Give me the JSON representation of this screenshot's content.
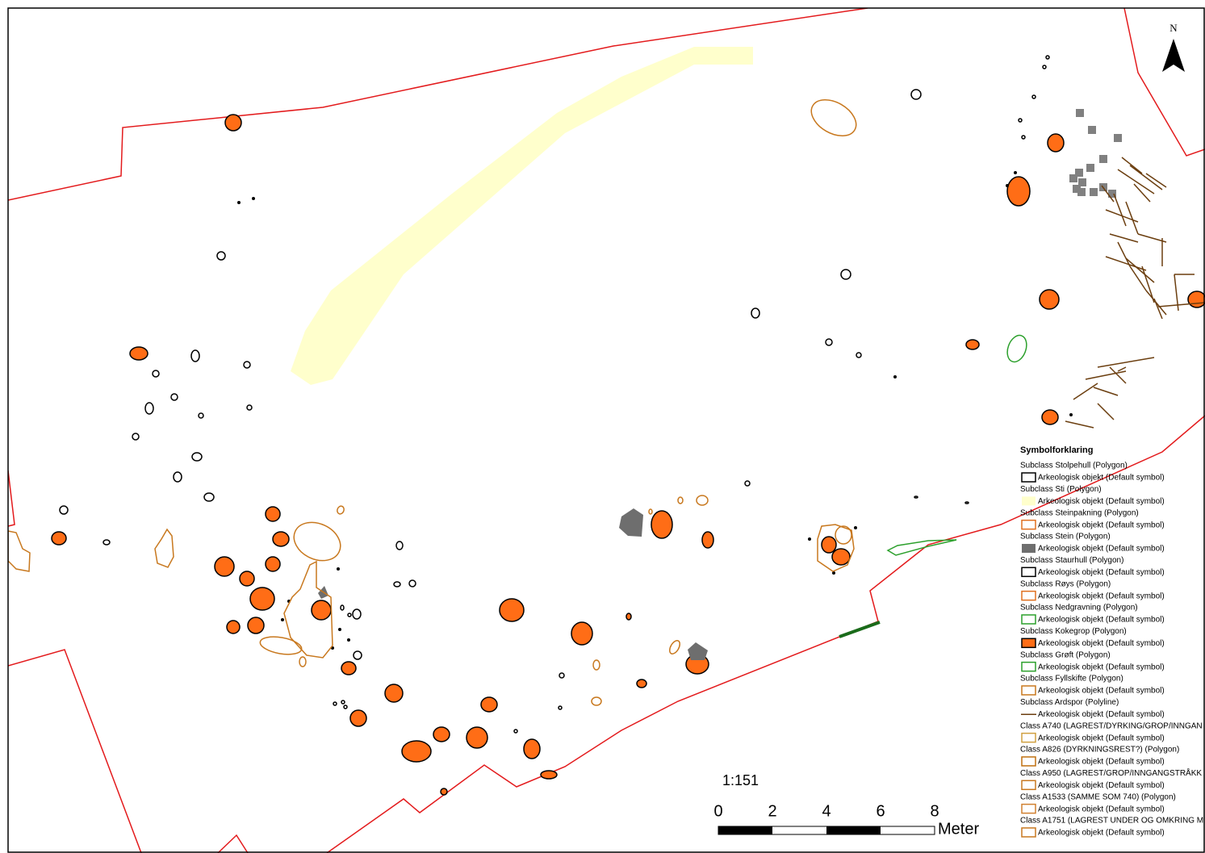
{
  "north_arrow": {
    "label": "N"
  },
  "scale": {
    "ratio": "1:151",
    "labels": [
      "0",
      "2",
      "4",
      "6",
      "8"
    ],
    "unit": "Meter"
  },
  "legend": {
    "title": "Symbolforklaring",
    "entries": [
      {
        "class": "Subclass Stolpehull (Polygon)",
        "label": "Arkeologisk objekt (Default symbol)"
      },
      {
        "class": "Subclass Sti (Polygon)",
        "label": "Arkeologisk objekt (Default symbol)"
      },
      {
        "class": "Subclass Steinpakning (Polygon)",
        "label": "Arkeologisk objekt (Default symbol)"
      },
      {
        "class": "Subclass Stein (Polygon)",
        "label": "Arkeologisk objekt (Default symbol)"
      },
      {
        "class": "Subclass Staurhull (Polygon)",
        "label": "Arkeologisk objekt (Default symbol)"
      },
      {
        "class": "Subclass Røys (Polygon)",
        "label": "Arkeologisk objekt (Default symbol)"
      },
      {
        "class": "Subclass Nedgravning (Polygon)",
        "label": "Arkeologisk objekt (Default symbol)"
      },
      {
        "class": "Subclass Kokegrop (Polygon)",
        "label": "Arkeologisk objekt (Default symbol)"
      },
      {
        "class": "Subclass Grøft (Polygon)",
        "label": "Arkeologisk objekt (Default symbol)"
      },
      {
        "class": "Subclass Fyllskifte (Polygon)",
        "label": "Arkeologisk objekt (Default symbol)"
      },
      {
        "class": "Subclass Ardspor (Polyline)",
        "label": "Arkeologisk objekt (Default symbol)"
      },
      {
        "class": "Class A740 (LAGREST/DYRKING/GROP/INNGAN",
        "label": "Arkeologisk objekt (Default symbol)"
      },
      {
        "class": "Class A826 (DYRKNINGSREST?) (Polygon)",
        "label": "Arkeologisk objekt (Default symbol)"
      },
      {
        "class": "Class A950 (LAGREST/GROP/INNGANGSTRÅKK",
        "label": "Arkeologisk objekt (Default symbol)"
      },
      {
        "class": "Class A1533 (SAMME SOM 740) (Polygon)",
        "label": "Arkeologisk objekt (Default symbol)"
      },
      {
        "class": "Class A1751 (LAGREST UNDER OG OMKRING M",
        "label": "Arkeologisk objekt (Default symbol)"
      }
    ]
  }
}
